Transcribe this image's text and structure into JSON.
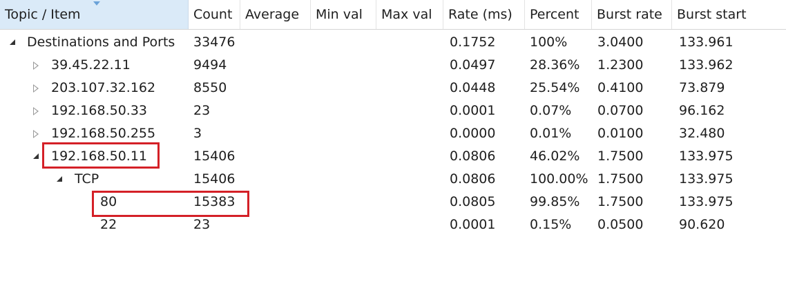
{
  "columns": [
    "Topic / Item",
    "Count",
    "Average",
    "Min val",
    "Max val",
    "Rate (ms)",
    "Percent",
    "Burst rate",
    "Burst start"
  ],
  "rows": [
    {
      "topic": "Destinations and Ports",
      "count": "33476",
      "average": "",
      "min_val": "",
      "max_val": "",
      "rate": "0.1752",
      "percent": "100%",
      "burst_rate": "3.0400",
      "burst_start": "133.961",
      "level": 0,
      "toggle": "expanded"
    },
    {
      "topic": "39.45.22.11",
      "count": "9494",
      "average": "",
      "min_val": "",
      "max_val": "",
      "rate": "0.0497",
      "percent": "28.36%",
      "burst_rate": "1.2300",
      "burst_start": "133.962",
      "level": 1,
      "toggle": "collapsed"
    },
    {
      "topic": "203.107.32.162",
      "count": "8550",
      "average": "",
      "min_val": "",
      "max_val": "",
      "rate": "0.0448",
      "percent": "25.54%",
      "burst_rate": "0.4100",
      "burst_start": "73.879",
      "level": 1,
      "toggle": "collapsed"
    },
    {
      "topic": "192.168.50.33",
      "count": "23",
      "average": "",
      "min_val": "",
      "max_val": "",
      "rate": "0.0001",
      "percent": "0.07%",
      "burst_rate": "0.0700",
      "burst_start": "96.162",
      "level": 1,
      "toggle": "collapsed"
    },
    {
      "topic": "192.168.50.255",
      "count": "3",
      "average": "",
      "min_val": "",
      "max_val": "",
      "rate": "0.0000",
      "percent": "0.01%",
      "burst_rate": "0.0100",
      "burst_start": "32.480",
      "level": 1,
      "toggle": "collapsed"
    },
    {
      "topic": "192.168.50.11",
      "count": "15406",
      "average": "",
      "min_val": "",
      "max_val": "",
      "rate": "0.0806",
      "percent": "46.02%",
      "burst_rate": "1.7500",
      "burst_start": "133.975",
      "level": 1,
      "toggle": "expanded"
    },
    {
      "topic": "TCP",
      "count": "15406",
      "average": "",
      "min_val": "",
      "max_val": "",
      "rate": "0.0806",
      "percent": "100.00%",
      "burst_rate": "1.7500",
      "burst_start": "133.975",
      "level": 2,
      "toggle": "expanded"
    },
    {
      "topic": "80",
      "count": "15383",
      "average": "",
      "min_val": "",
      "max_val": "",
      "rate": "0.0805",
      "percent": "99.85%",
      "burst_rate": "1.7500",
      "burst_start": "133.975",
      "level": 3,
      "toggle": "none"
    },
    {
      "topic": "22",
      "count": "23",
      "average": "",
      "min_val": "",
      "max_val": "",
      "rate": "0.0001",
      "percent": "0.15%",
      "burst_rate": "0.0500",
      "burst_start": "90.620",
      "level": 3,
      "toggle": "none"
    }
  ],
  "colors": {
    "header_selected": "#daeaf8",
    "highlight_border": "#d42027",
    "sort_indicator": "#6aa2d8"
  },
  "icons": {
    "sort": "sort-descending-icon",
    "collapsed": "triangle-right-outline-icon",
    "expanded": "triangle-down-filled-icon"
  }
}
